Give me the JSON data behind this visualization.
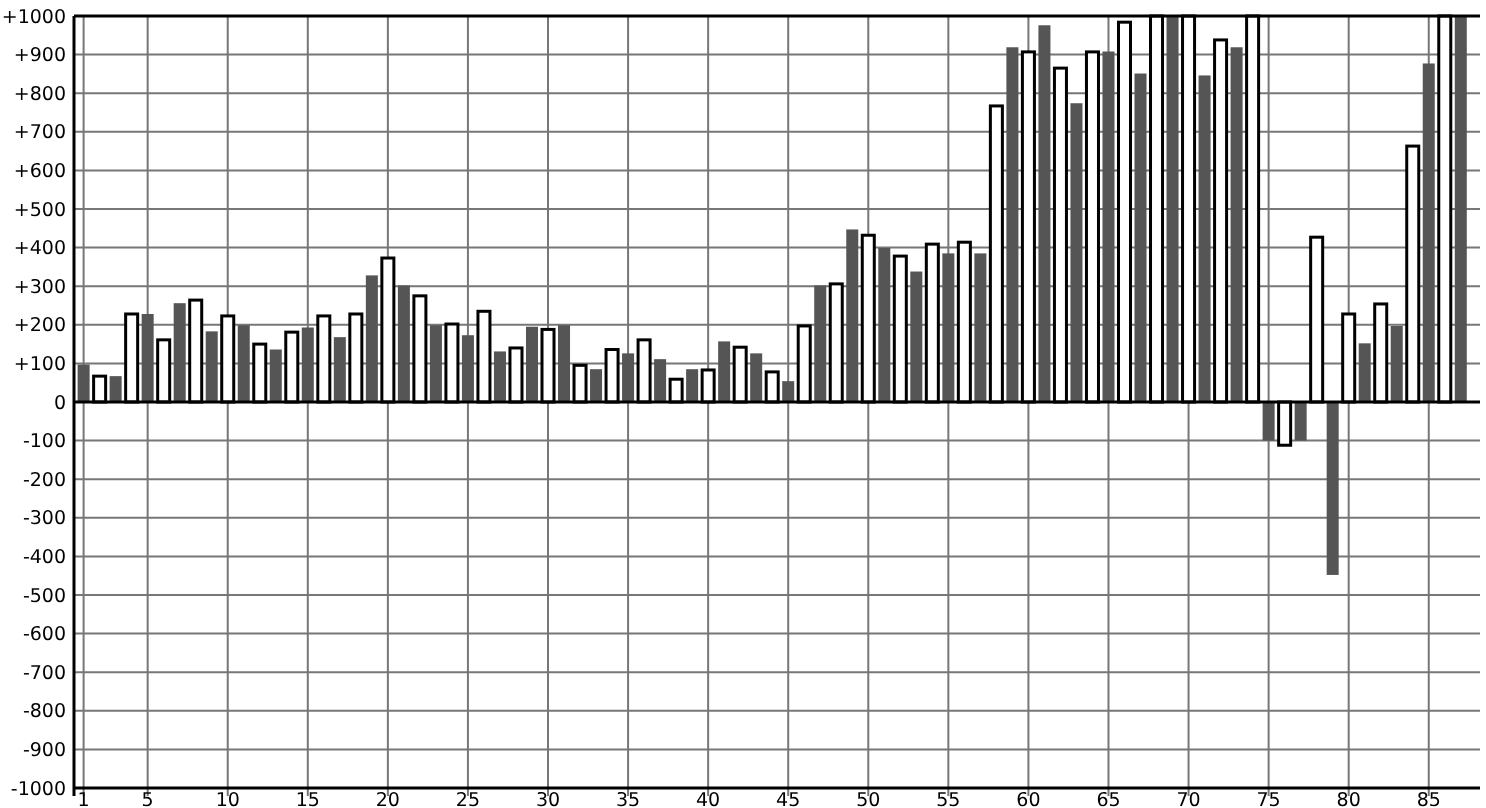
{
  "chart_data": {
    "type": "bar",
    "grid": true,
    "series": [
      {
        "color": "#555555",
        "x": [
          1,
          3,
          5,
          7,
          9,
          11,
          13,
          15,
          17,
          19,
          21,
          23,
          25,
          27,
          29,
          31,
          33,
          35,
          37,
          39,
          41,
          43,
          45,
          47,
          49,
          51,
          53,
          55,
          57,
          59,
          61,
          63,
          65,
          67,
          69,
          71,
          73,
          75,
          77,
          79,
          81,
          83,
          85,
          87
        ],
        "values": [
          97,
          67,
          228,
          256,
          183,
          199,
          136,
          193,
          168,
          328,
          302,
          199,
          173,
          131,
          195,
          199,
          85,
          126,
          111,
          85,
          157,
          126,
          54,
          302,
          447,
          399,
          338,
          385,
          385,
          919,
          976,
          774,
          908,
          851,
          1000,
          846,
          919,
          -100,
          -100,
          -448,
          152,
          197,
          877,
          1000
        ]
      },
      {
        "color": "#ffffff",
        "x": [
          2,
          4,
          6,
          8,
          10,
          12,
          14,
          16,
          18,
          20,
          22,
          24,
          26,
          28,
          30,
          32,
          34,
          36,
          38,
          40,
          42,
          44,
          46,
          48,
          50,
          52,
          54,
          56,
          58,
          60,
          62,
          64,
          66,
          68,
          70,
          72,
          74,
          76,
          78,
          80,
          82,
          84,
          86
        ],
        "values": [
          67,
          228,
          161,
          264,
          223,
          150,
          181,
          223,
          228,
          373,
          275,
          202,
          235,
          140,
          188,
          95,
          136,
          161,
          59,
          83,
          142,
          78,
          197,
          306,
          432,
          378,
          409,
          414,
          767,
          907,
          865,
          907,
          984,
          1000,
          1000,
          938,
          1000,
          -112,
          427,
          228,
          254,
          663,
          1000
        ]
      }
    ],
    "xlim": [
      0.4,
      88.2
    ],
    "xticks": [
      1,
      5,
      10,
      15,
      20,
      25,
      30,
      35,
      40,
      45,
      50,
      55,
      60,
      65,
      70,
      75,
      80,
      85
    ],
    "ylim": [
      -1000,
      1000
    ],
    "yticks": [
      -1000,
      -900,
      -800,
      -700,
      -600,
      -500,
      -400,
      -300,
      -200,
      -100,
      0,
      {
        "value": 100,
        "label": "+100"
      },
      {
        "value": 200,
        "label": "+200"
      },
      {
        "value": 300,
        "label": "+300"
      },
      {
        "value": 400,
        "label": "+400"
      },
      {
        "value": 500,
        "label": "+500"
      },
      {
        "value": 600,
        "label": "+600"
      },
      {
        "value": 700,
        "label": "+700"
      },
      {
        "value": 800,
        "label": "+800"
      },
      {
        "value": 900,
        "label": "+900"
      },
      {
        "value": 1000,
        "label": "+1000"
      }
    ]
  }
}
